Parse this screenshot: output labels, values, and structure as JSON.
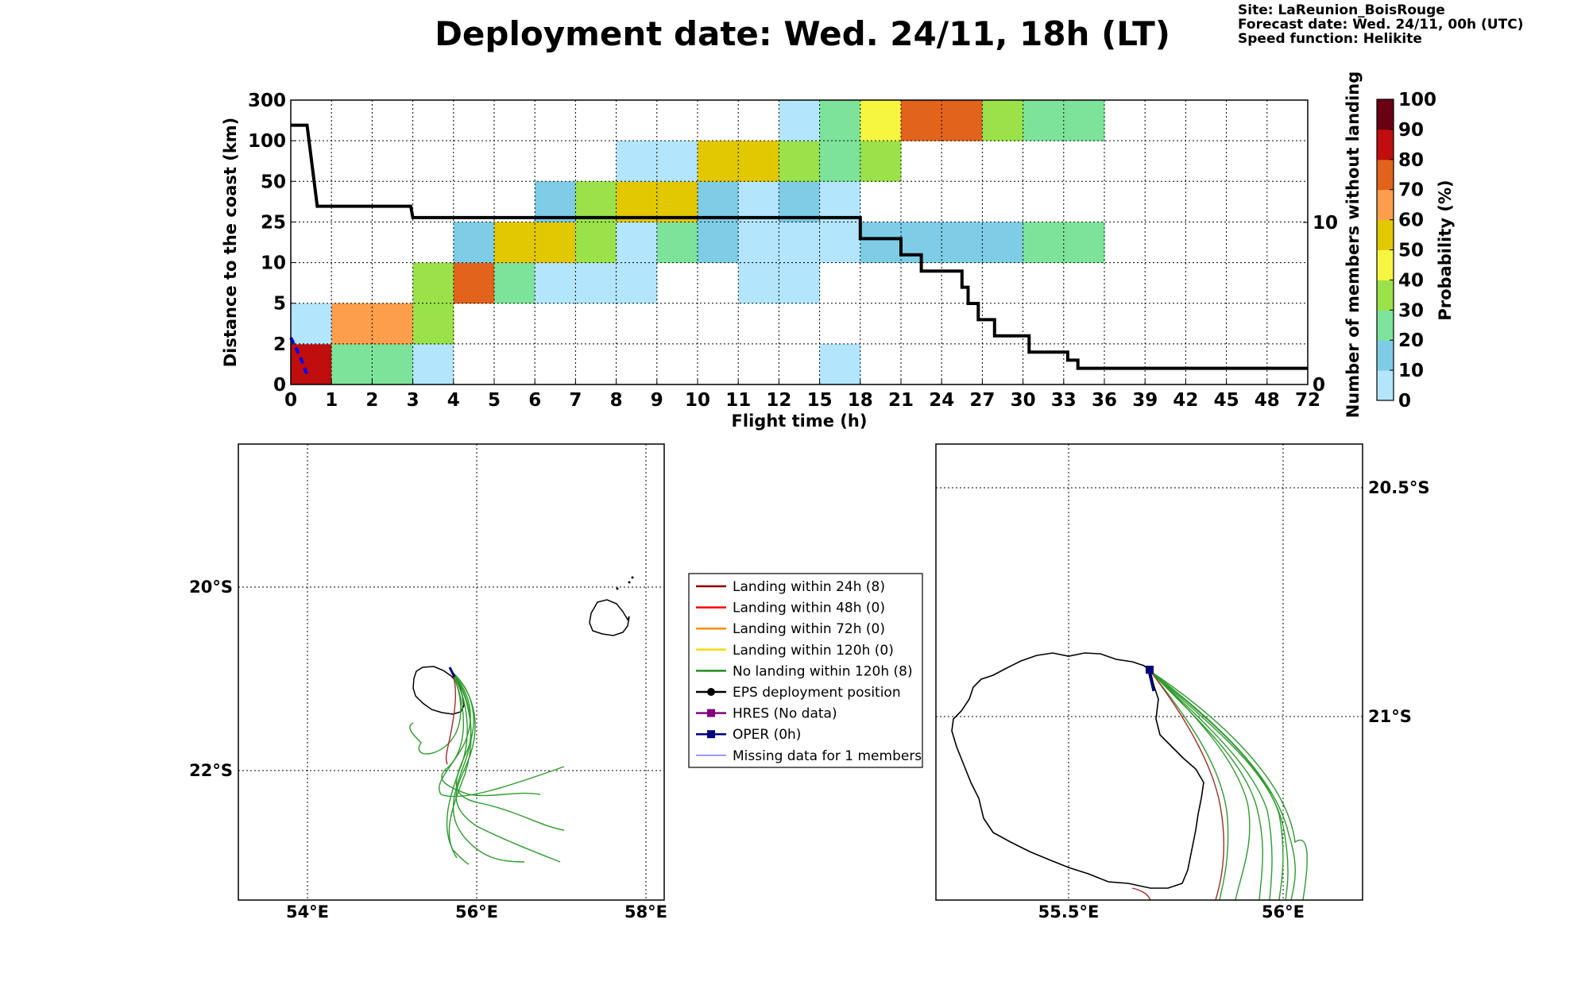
{
  "header": {
    "title": "Deployment date: Wed. 24/11, 18h (LT)",
    "site": "Site: LaReunion_BoisRouge",
    "forecast": "Forecast date: Wed. 24/11, 00h (UTC)",
    "speed": "Speed function: Helikite"
  },
  "chart_data": [
    {
      "type": "heatmap",
      "xlabel": "Flight time (h)",
      "ylabel": "Distance to the coast (km)",
      "y2label": "Number of members without landing",
      "x_ticks": [
        "0",
        "1",
        "2",
        "3",
        "4",
        "5",
        "6",
        "7",
        "8",
        "9",
        "10",
        "11",
        "12",
        "15",
        "18",
        "21",
        "24",
        "27",
        "30",
        "33",
        "36",
        "39",
        "42",
        "45",
        "48",
        "72"
      ],
      "y_ticks": [
        "0",
        "2",
        "5",
        "10",
        "25",
        "50",
        "100",
        "300"
      ],
      "y2_ticks": [
        "0",
        "10"
      ],
      "colorbar": {
        "label": "Probability (%)",
        "ticks": [
          "0",
          "10",
          "20",
          "30",
          "40",
          "50",
          "60",
          "70",
          "80",
          "90",
          "100"
        ],
        "colors": [
          "#b3e5fc",
          "#7ecce6",
          "#7ee39a",
          "#9be24a",
          "#f6f640",
          "#e2c800",
          "#fd9e4c",
          "#e2631c",
          "#c00d0d",
          "#6b0012"
        ]
      },
      "cells": [
        {
          "t": 0,
          "d": 0,
          "p": 85
        },
        {
          "t": 1,
          "d": 0,
          "p": 25
        },
        {
          "t": 2,
          "d": 0,
          "p": 25
        },
        {
          "t": 3,
          "d": 0,
          "p": 5
        },
        {
          "t": 13,
          "d": 0,
          "p": 5
        },
        {
          "t": 0,
          "d": 1,
          "p": 5
        },
        {
          "t": 1,
          "d": 1,
          "p": 65
        },
        {
          "t": 2,
          "d": 1,
          "p": 65
        },
        {
          "t": 3,
          "d": 1,
          "p": 35
        },
        {
          "t": 3,
          "d": 2,
          "p": 35
        },
        {
          "t": 4,
          "d": 2,
          "p": 75
        },
        {
          "t": 5,
          "d": 2,
          "p": 25
        },
        {
          "t": 6,
          "d": 2,
          "p": 5
        },
        {
          "t": 7,
          "d": 2,
          "p": 5
        },
        {
          "t": 8,
          "d": 2,
          "p": 5
        },
        {
          "t": 11,
          "d": 2,
          "p": 5
        },
        {
          "t": 12,
          "d": 2,
          "p": 5
        },
        {
          "t": 4,
          "d": 3,
          "p": 15
        },
        {
          "t": 5,
          "d": 3,
          "p": 55
        },
        {
          "t": 6,
          "d": 3,
          "p": 55
        },
        {
          "t": 7,
          "d": 3,
          "p": 35
        },
        {
          "t": 8,
          "d": 3,
          "p": 5
        },
        {
          "t": 9,
          "d": 3,
          "p": 25
        },
        {
          "t": 10,
          "d": 3,
          "p": 15
        },
        {
          "t": 11,
          "d": 3,
          "p": 5
        },
        {
          "t": 12,
          "d": 3,
          "p": 5
        },
        {
          "t": 13,
          "d": 3,
          "p": 5
        },
        {
          "t": 14,
          "d": 3,
          "p": 15
        },
        {
          "t": 15,
          "d": 3,
          "p": 15
        },
        {
          "t": 16,
          "d": 3,
          "p": 15
        },
        {
          "t": 17,
          "d": 3,
          "p": 15
        },
        {
          "t": 18,
          "d": 3,
          "p": 25
        },
        {
          "t": 19,
          "d": 3,
          "p": 25
        },
        {
          "t": 6,
          "d": 4,
          "p": 15
        },
        {
          "t": 7,
          "d": 4,
          "p": 35
        },
        {
          "t": 8,
          "d": 4,
          "p": 55
        },
        {
          "t": 9,
          "d": 4,
          "p": 55
        },
        {
          "t": 10,
          "d": 4,
          "p": 15
        },
        {
          "t": 11,
          "d": 4,
          "p": 5
        },
        {
          "t": 12,
          "d": 4,
          "p": 15
        },
        {
          "t": 13,
          "d": 4,
          "p": 5
        },
        {
          "t": 8,
          "d": 5,
          "p": 5
        },
        {
          "t": 9,
          "d": 5,
          "p": 5
        },
        {
          "t": 10,
          "d": 5,
          "p": 55
        },
        {
          "t": 11,
          "d": 5,
          "p": 55
        },
        {
          "t": 12,
          "d": 5,
          "p": 35
        },
        {
          "t": 13,
          "d": 5,
          "p": 25
        },
        {
          "t": 14,
          "d": 5,
          "p": 35
        },
        {
          "t": 12,
          "d": 6,
          "p": 5
        },
        {
          "t": 13,
          "d": 6,
          "p": 25
        },
        {
          "t": 14,
          "d": 6,
          "p": 45
        },
        {
          "t": 15,
          "d": 6,
          "p": 75
        },
        {
          "t": 16,
          "d": 6,
          "p": 75
        },
        {
          "t": 17,
          "d": 6,
          "p": 35
        },
        {
          "t": 18,
          "d": 6,
          "p": 25
        },
        {
          "t": 19,
          "d": 6,
          "p": 25
        }
      ],
      "members_without_landing": [
        {
          "t": 0,
          "n": 16
        },
        {
          "t": 0.4,
          "n": 16
        },
        {
          "t": 0.65,
          "n": 11
        },
        {
          "t": 2.95,
          "n": 11
        },
        {
          "t": 3.0,
          "n": 10.3
        },
        {
          "t": 14.0,
          "n": 10.3
        },
        {
          "t": 14.0,
          "n": 9
        },
        {
          "t": 15.0,
          "n": 9
        },
        {
          "t": 15.0,
          "n": 8
        },
        {
          "t": 15.5,
          "n": 8
        },
        {
          "t": 15.5,
          "n": 7
        },
        {
          "t": 16.5,
          "n": 7
        },
        {
          "t": 16.5,
          "n": 6
        },
        {
          "t": 16.65,
          "n": 6
        },
        {
          "t": 16.65,
          "n": 5
        },
        {
          "t": 16.9,
          "n": 5
        },
        {
          "t": 16.9,
          "n": 4
        },
        {
          "t": 17.3,
          "n": 4
        },
        {
          "t": 17.3,
          "n": 3
        },
        {
          "t": 18.15,
          "n": 3
        },
        {
          "t": 18.15,
          "n": 2
        },
        {
          "t": 19.1,
          "n": 2
        },
        {
          "t": 19.1,
          "n": 1.5
        },
        {
          "t": 19.35,
          "n": 1.5
        },
        {
          "t": 19.35,
          "n": 1
        },
        {
          "t": 25,
          "n": 1
        }
      ]
    }
  ],
  "maps": {
    "left": {
      "x_ticks": [
        "54°E",
        "56°E",
        "58°E"
      ],
      "y_ticks": [
        "20°S",
        "22°S"
      ]
    },
    "right": {
      "x_ticks": [
        "55.5°E",
        "56°E"
      ],
      "y_ticks": [
        "20.5°S",
        "21°S"
      ]
    }
  },
  "legend": [
    {
      "label": "Landing within 24h (8)",
      "color": "#8b0000",
      "marker": "none"
    },
    {
      "label": "Landing within 48h (0)",
      "color": "#ff0000",
      "marker": "none"
    },
    {
      "label": "Landing within 72h (0)",
      "color": "#ff8c00",
      "marker": "none"
    },
    {
      "label": "Landing within 120h (0)",
      "color": "#ffd700",
      "marker": "none"
    },
    {
      "label": "No landing within 120h (8)",
      "color": "#228b22",
      "marker": "none"
    },
    {
      "label": "EPS deployment position",
      "color": "#000000",
      "marker": "circle"
    },
    {
      "label": "HRES (No data)",
      "color": "#800080",
      "marker": "square"
    },
    {
      "label": "OPER (0h)",
      "color": "#00007f",
      "marker": "square"
    },
    {
      "label": "Missing data for 1 members",
      "color": "#4b4bff",
      "marker": "thin"
    }
  ]
}
